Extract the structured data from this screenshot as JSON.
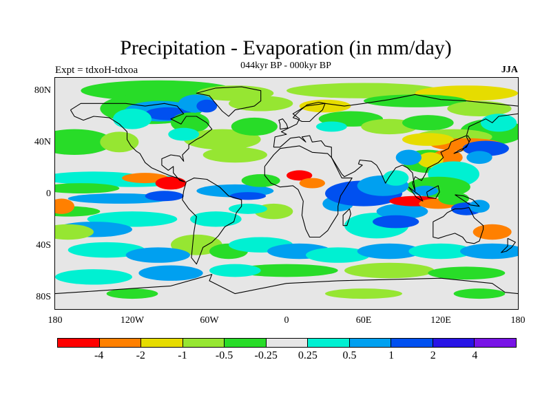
{
  "title": "Precipitation - Evaporation (in mm/day)",
  "subtitle": "044kyr BP - 000kyr BP",
  "experiment": "Expt = tdxoH-tdxoa",
  "season": "JJA",
  "map": {
    "projection": "cylindrical-equidistant",
    "lon_range": [
      -180,
      180
    ],
    "lat_range": [
      -90,
      90
    ],
    "land_outline_color": "#000000",
    "background_color": "#e6e6e6",
    "lat_ticks": [
      "80N",
      "40N",
      "0",
      "40S",
      "80S"
    ],
    "lon_ticks": [
      "180",
      "120W",
      "60W",
      "0",
      "60E",
      "120E",
      "180"
    ]
  },
  "colorbar": {
    "colors": [
      "#ff0000",
      "#ff8000",
      "#e6dc00",
      "#96e632",
      "#28dc28",
      "#e6e6e6",
      "#00f0d2",
      "#00a0f0",
      "#0050f0",
      "#2814e6",
      "#7814e6"
    ],
    "labels": [
      "-4",
      "-2",
      "-1",
      "-0.5",
      "-0.25",
      "0.25",
      "0.5",
      "1",
      "2",
      "4"
    ]
  }
}
